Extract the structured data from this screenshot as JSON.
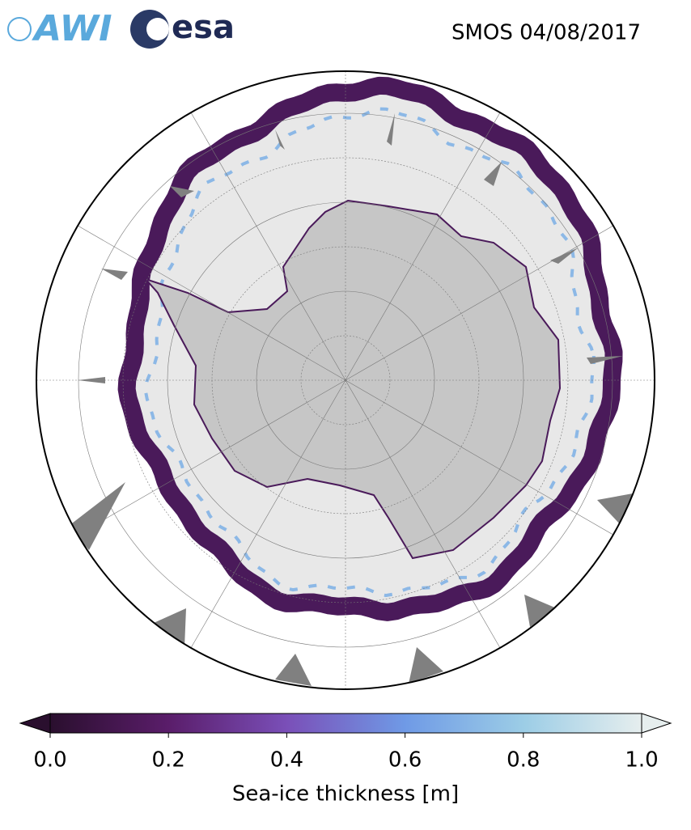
{
  "header": {
    "logos": [
      "AWI",
      "esa"
    ],
    "title": "SMOS 04/08/2017"
  },
  "colorbar": {
    "label": "Sea-ice thickness [m]",
    "lim": [
      0,
      1
    ],
    "ticks": [
      {
        "value": 0,
        "label": "0.0"
      },
      0.2,
      0.4,
      0.6,
      0.8,
      {
        "value": 1,
        "label": "1.0"
      }
    ],
    "extend": "both",
    "colors": [
      "#2a0f2e",
      "#5a1d6a",
      "#7a4fb8",
      "#6f9ae6",
      "#9ccde6",
      "#e6eeee"
    ]
  }
}
